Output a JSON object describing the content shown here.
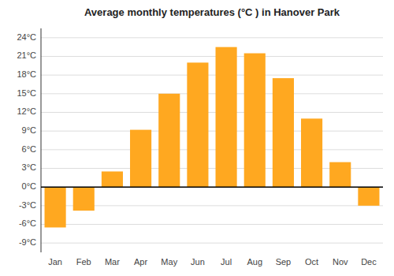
{
  "chart_data": {
    "type": "bar",
    "title": "Average monthly temperatures (°C ) in Hanover Park",
    "categories": [
      "Jan",
      "Feb",
      "Mar",
      "Apr",
      "May",
      "Jun",
      "Jul",
      "Aug",
      "Sep",
      "Oct",
      "Nov",
      "Dec"
    ],
    "values": [
      -6.5,
      -3.8,
      2.5,
      9.2,
      15.0,
      20.0,
      22.5,
      21.5,
      17.5,
      11.0,
      4.0,
      -3.0
    ],
    "color": "#FFA820",
    "ylim": [
      -10.5,
      25.5
    ],
    "yticks": [
      {
        "value": -9,
        "label": "-9°C"
      },
      {
        "value": -6,
        "label": "-6°C"
      },
      {
        "value": -3,
        "label": "-3°C"
      },
      {
        "value": 0,
        "label": "0°C"
      },
      {
        "value": 3,
        "label": "3°C"
      },
      {
        "value": 6,
        "label": "6°C"
      },
      {
        "value": 9,
        "label": "9°C"
      },
      {
        "value": 12,
        "label": "12°C"
      },
      {
        "value": 15,
        "label": "15°C"
      },
      {
        "value": 18,
        "label": "18°C"
      },
      {
        "value": 21,
        "label": "21°C"
      },
      {
        "value": 24,
        "label": "24°C"
      }
    ],
    "grid": true
  }
}
